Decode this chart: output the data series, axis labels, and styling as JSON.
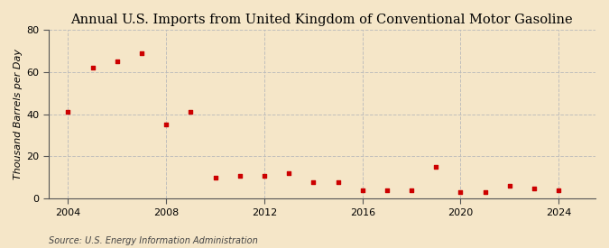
{
  "title": "Annual U.S. Imports from United Kingdom of Conventional Motor Gasoline",
  "ylabel": "Thousand Barrels per Day",
  "source": "Source: U.S. Energy Information Administration",
  "background_color": "#f5e6c8",
  "plot_bg_color": "#f5e6c8",
  "marker_color": "#cc0000",
  "years": [
    2004,
    2005,
    2006,
    2007,
    2008,
    2009,
    2010,
    2011,
    2012,
    2013,
    2014,
    2015,
    2016,
    2017,
    2018,
    2019,
    2020,
    2021,
    2022,
    2023,
    2024
  ],
  "values": [
    41,
    62,
    65,
    69,
    35,
    41,
    10,
    11,
    11,
    12,
    8,
    8,
    4,
    4,
    4,
    15,
    3,
    3,
    6,
    5,
    4
  ],
  "ylim": [
    0,
    80
  ],
  "yticks": [
    0,
    20,
    40,
    60,
    80
  ],
  "xlim": [
    2003.2,
    2025.5
  ],
  "xticks": [
    2004,
    2008,
    2012,
    2016,
    2020,
    2024
  ],
  "title_fontsize": 10.5,
  "label_fontsize": 8,
  "tick_fontsize": 8,
  "source_fontsize": 7,
  "grid_color": "#bbbbbb",
  "grid_style": "--",
  "grid_alpha": 0.9,
  "vline_color": "#bbbbbb",
  "vline_style": "--",
  "vline_alpha": 0.9
}
